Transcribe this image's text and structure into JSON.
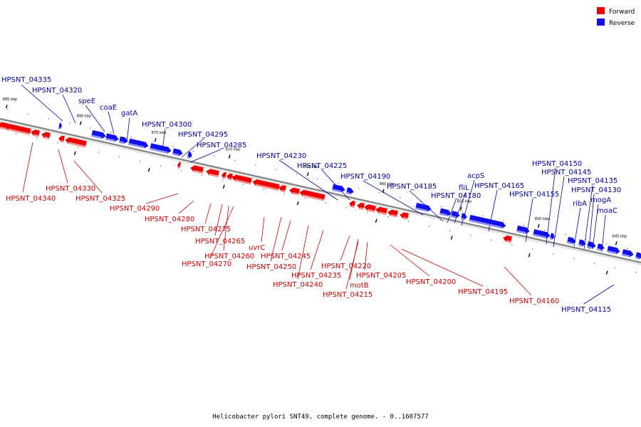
{
  "caption": "Helicobacter pylori SNT49, complete genome. - 0..1607577",
  "legend": [
    {
      "label": "Forward",
      "color": "#ee0000"
    },
    {
      "label": "Reverse",
      "color": "#1010ee"
    }
  ],
  "colors": {
    "forward": "#ee0000",
    "forward_shade": "#ff9090",
    "reverse": "#1010ee",
    "reverse_shade": "#8f8fff",
    "forward_text": "#cc0000",
    "reverse_text": "#000099",
    "backbone": "#888888"
  },
  "kbp_marks": [
    "885 kbp",
    "880 kbp",
    "875 kbp",
    "870 kbp",
    "865 kbp",
    "860 kbp",
    "855 kbp",
    "850 kbp",
    "845 kbp"
  ],
  "forward_genes": [
    "HPSNT_04340",
    "HPSNT_04330",
    "HPSNT_04325",
    "HPSNT_04290",
    "HPSNT_04280",
    "HPSNT_04275",
    "HPSNT_04265",
    "HPSNT_04260",
    "HPSNT_04270",
    "uvrC",
    "HPSNT_04245",
    "HPSNT_04250",
    "HPSNT_04235",
    "HPSNT_04240",
    "HPSNT_04220",
    "motB",
    "HPSNT_04215",
    "HPSNT_04205",
    "HPSNT_04200",
    "HPSNT_04195",
    "HPSNT_04160"
  ],
  "reverse_genes": [
    "HPSNT_04335",
    "HPSNT_04320",
    "speE",
    "coaE",
    "gatA",
    "HPSNT_04300",
    "HPSNT_04295",
    "HPSNT_04285",
    "HPSNT_04230",
    "HPSNT_04225",
    "HPSNT_04190",
    "HPSNT_04185",
    "acpS",
    "fliL",
    "HPSNT_04165",
    "HPSNT_04180",
    "HPSNT_04150",
    "HPSNT_04145",
    "HPSNT_04155",
    "HPSNT_04135",
    "HPSNT_04130",
    "ribA",
    "mogA",
    "moaC",
    "HPSNT_04115"
  ]
}
